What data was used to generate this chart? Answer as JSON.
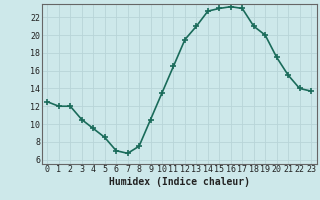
{
  "x": [
    0,
    1,
    2,
    3,
    4,
    5,
    6,
    7,
    8,
    9,
    10,
    11,
    12,
    13,
    14,
    15,
    16,
    17,
    18,
    19,
    20,
    21,
    22,
    23
  ],
  "y": [
    12.5,
    12.0,
    12.0,
    10.5,
    9.5,
    8.5,
    7.0,
    6.7,
    7.5,
    10.5,
    13.5,
    16.5,
    19.5,
    21.0,
    22.7,
    23.0,
    23.2,
    23.0,
    21.0,
    20.0,
    17.5,
    15.5,
    14.0,
    13.7
  ],
  "xlabel": "Humidex (Indice chaleur)",
  "ylim": [
    5.5,
    23.5
  ],
  "xlim": [
    -0.5,
    23.5
  ],
  "yticks": [
    6,
    8,
    10,
    12,
    14,
    16,
    18,
    20,
    22
  ],
  "xticks": [
    0,
    1,
    2,
    3,
    4,
    5,
    6,
    7,
    8,
    9,
    10,
    11,
    12,
    13,
    14,
    15,
    16,
    17,
    18,
    19,
    20,
    21,
    22,
    23
  ],
  "line_color": "#1a6b5a",
  "marker_color": "#1a6b5a",
  "bg_color": "#cde8ea",
  "grid_color": "#b8d4d8",
  "axis_color": "#666666",
  "xlabel_fontsize": 7,
  "tick_fontsize": 6,
  "marker_size": 2.5,
  "line_width": 1.2
}
